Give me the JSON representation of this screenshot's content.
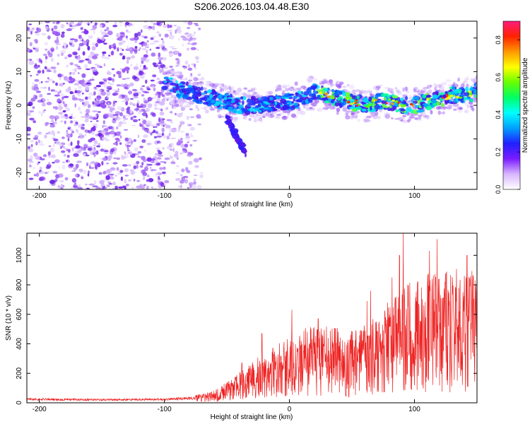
{
  "title": "S206.2026.103.04.48.E30",
  "colors": {
    "snr_line": "#ee2222",
    "scatter_purple": "#6a1ee6",
    "colorbar": [
      "#ffffff",
      "#d8b6ff",
      "#7a1cff",
      "#2020ff",
      "#00a0ff",
      "#00ffff",
      "#00ff66",
      "#66ff00",
      "#ffff00",
      "#ff9900",
      "#ff2200",
      "#ff1a7a"
    ]
  },
  "chart_data": [
    {
      "type": "heatmap",
      "title": "S206.2026.103.04.48.E30",
      "xlabel": "Height of straight line (km)",
      "ylabel": "Frequency (Hz)",
      "xlim": [
        -210,
        150
      ],
      "ylim": [
        -25,
        25
      ],
      "xticks": [
        -200,
        -100,
        0,
        100
      ],
      "yticks": [
        -20,
        -10,
        0,
        10,
        20
      ],
      "xtick_labels": [
        "-200",
        "-100",
        "0",
        "100"
      ],
      "ytick_labels": [
        "-20",
        "-10",
        "0",
        "10",
        "20"
      ],
      "colorbar": {
        "label": "Normalized spectral amplitude",
        "range": [
          0.0,
          0.9
        ],
        "ticks": [
          0.0,
          0.2,
          0.4,
          0.6,
          0.8
        ],
        "tick_labels": [
          "0.0",
          "0.2",
          "0.4",
          "0.6",
          "0.8"
        ]
      },
      "ridge": {
        "x": [
          -100,
          -90,
          -80,
          -70,
          -60,
          -50,
          -40,
          -30,
          -20,
          -10,
          0,
          10,
          20,
          30,
          40,
          50,
          60,
          70,
          80,
          90,
          100,
          110,
          120,
          130,
          140,
          150
        ],
        "freq": [
          7,
          5,
          4,
          3,
          2,
          1,
          0,
          0,
          0,
          1,
          1,
          2,
          4,
          3,
          2,
          1,
          0,
          1,
          1,
          0,
          0,
          1,
          2,
          3,
          3,
          4
        ]
      },
      "noise_region": {
        "x": [
          -210,
          -70
        ],
        "freq": [
          -25,
          25
        ]
      },
      "low_branch": {
        "x": [
          -50,
          -35
        ],
        "freq": [
          -14,
          -4
        ]
      }
    },
    {
      "type": "line",
      "xlabel": "Height of straight line (km)",
      "ylabel": "SNR (10 * v/v)",
      "xlim": [
        -210,
        150
      ],
      "ylim": [
        0,
        1150
      ],
      "xticks": [
        -200,
        -100,
        0,
        100
      ],
      "yticks": [
        0,
        200,
        400,
        600,
        800,
        1000
      ],
      "xtick_labels": [
        "-200",
        "-100",
        "0",
        "100"
      ],
      "ytick_labels": [
        "0",
        "200",
        "400",
        "600",
        "800",
        "1000"
      ],
      "series": [
        {
          "name": "SNR",
          "envelope_x": [
            -210,
            -150,
            -100,
            -80,
            -70,
            -60,
            -50,
            -40,
            -30,
            -20,
            -10,
            0,
            10,
            20,
            30,
            40,
            50,
            60,
            70,
            80,
            90,
            100,
            110,
            120,
            130,
            140,
            150
          ],
          "envelope_y": [
            35,
            30,
            35,
            45,
            55,
            80,
            130,
            190,
            260,
            310,
            370,
            430,
            470,
            480,
            480,
            470,
            460,
            500,
            560,
            650,
            720,
            780,
            820,
            840,
            850,
            840,
            820
          ],
          "peaks": [
            {
              "x": -38,
              "y": 270
            },
            {
              "x": -22,
              "y": 470
            },
            {
              "x": 2,
              "y": 630
            },
            {
              "x": 23,
              "y": 570
            },
            {
              "x": 62,
              "y": 690
            },
            {
              "x": 65,
              "y": 760
            },
            {
              "x": 82,
              "y": 850
            },
            {
              "x": 88,
              "y": 1000
            },
            {
              "x": 91,
              "y": 1150
            },
            {
              "x": 112,
              "y": 1030
            },
            {
              "x": 118,
              "y": 1110
            },
            {
              "x": 142,
              "y": 1000
            }
          ]
        }
      ]
    }
  ]
}
